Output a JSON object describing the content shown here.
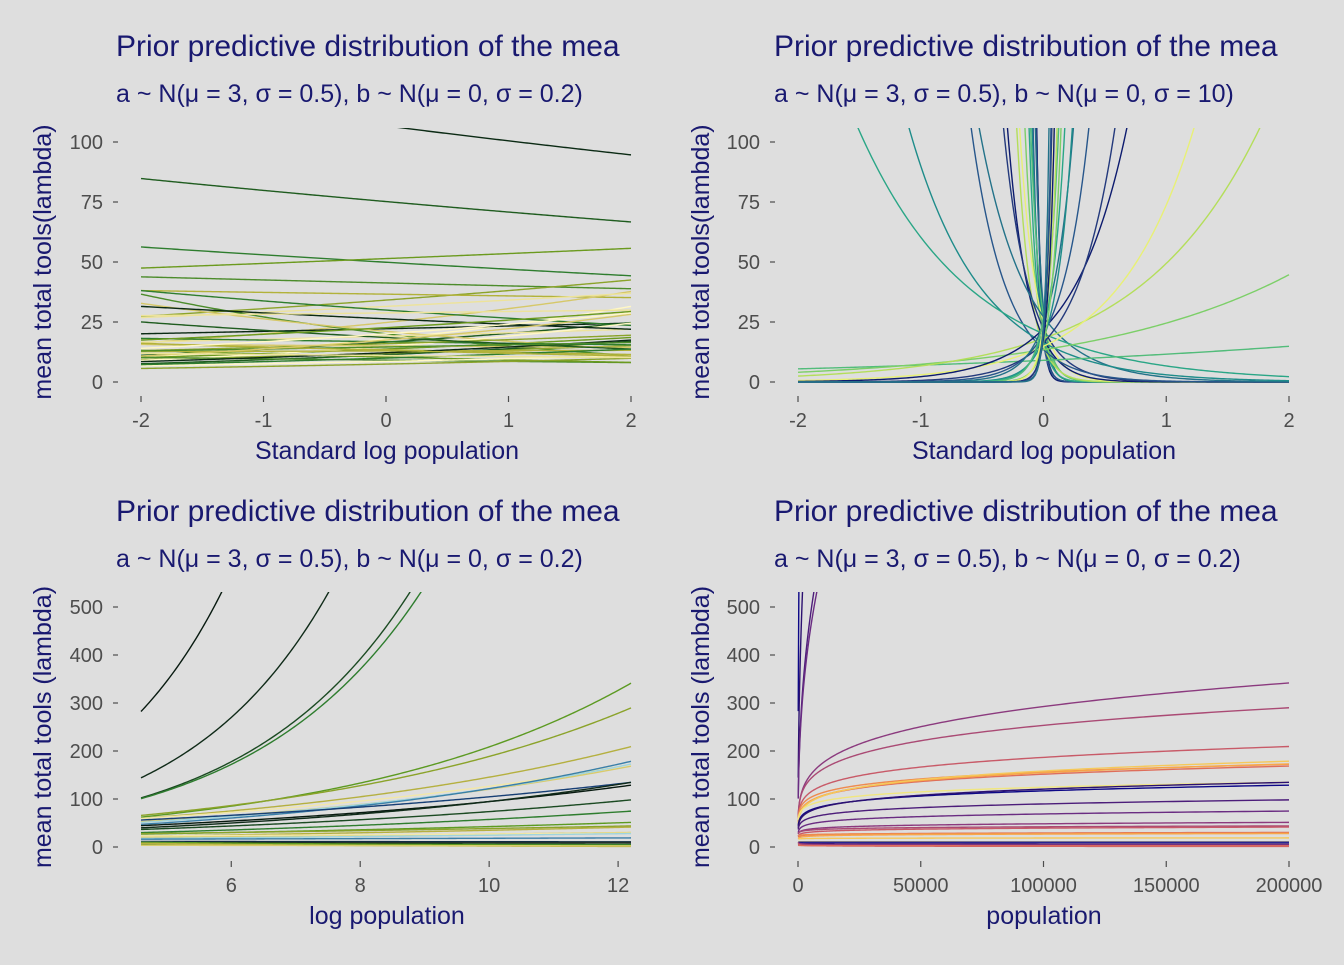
{
  "chart_data": [
    {
      "id": "tl",
      "type": "line",
      "title": "Prior predictive distribution of the mea",
      "subtitle": "a ~ N(μ = 3, σ = 0.5), b ~ N(μ = 0, σ = 0.2)",
      "xlabel": "Standard log population",
      "ylabel": "mean total tools(lambda)",
      "xlim": [
        -2,
        2
      ],
      "ylim": [
        0,
        100
      ],
      "xticks": [
        -2,
        -1,
        0,
        1,
        2
      ],
      "xtick_labels": [
        "-2",
        "-1",
        "0",
        "1",
        "2"
      ],
      "yticks": [
        0,
        25,
        50,
        75,
        100
      ],
      "ytick_labels": [
        "0",
        "25",
        "50",
        "75",
        "100"
      ],
      "grid": false,
      "legend": "none",
      "colors": [
        "#0B2A14",
        "#1F5C1F",
        "#2E7D2E",
        "#4C8C2B",
        "#6B9A1E",
        "#8BA32A",
        "#B2B23A",
        "#D6C869",
        "#EDE39A",
        "#FFF7C4"
      ],
      "model": "lambda = exp(a + b * x)",
      "series": [
        {
          "a": 4.67,
          "b": -0.06
        },
        {
          "a": 4.32,
          "b": -0.06
        },
        {
          "a": 3.91,
          "b": -0.06
        },
        {
          "a": 3.72,
          "b": -0.03
        },
        {
          "a": 3.94,
          "b": 0.04
        },
        {
          "a": 3.53,
          "b": 0.11
        },
        {
          "a": 3.6,
          "b": -0.02
        },
        {
          "a": 3.21,
          "b": 0.21
        },
        {
          "a": 3.45,
          "b": 0.08
        },
        {
          "a": 2.89,
          "b": 0.28
        },
        {
          "a": 3.1,
          "b": 0.05
        },
        {
          "a": 2.81,
          "b": 0.2
        },
        {
          "a": 3.4,
          "b": -0.12
        },
        {
          "a": 3.0,
          "b": -0.3
        },
        {
          "a": 2.62,
          "b": 0.15
        },
        {
          "a": 2.48,
          "b": 0.12
        },
        {
          "a": 2.6,
          "b": -0.08
        },
        {
          "a": 3.05,
          "b": -0.22
        },
        {
          "a": 2.95,
          "b": 0.07
        },
        {
          "a": 2.7,
          "b": 0.25
        },
        {
          "a": 3.27,
          "b": -0.09
        },
        {
          "a": 2.43,
          "b": 0.2
        },
        {
          "a": 2.82,
          "b": -0.04
        },
        {
          "a": 2.21,
          "b": -0.06
        },
        {
          "a": 2.34,
          "b": -0.12
        },
        {
          "a": 2.77,
          "b": 0.1
        },
        {
          "a": 2.56,
          "b": 0.01
        },
        {
          "a": 2.71,
          "b": -0.02
        },
        {
          "a": 3.36,
          "b": 0.02
        },
        {
          "a": 2.15,
          "b": 0.12
        },
        {
          "a": 2.5,
          "b": 0.18
        },
        {
          "a": 2.92,
          "b": -0.15
        },
        {
          "a": 2.3,
          "b": 0.16
        },
        {
          "a": 2.68,
          "b": 0.06
        },
        {
          "a": 3.12,
          "b": 0.13
        },
        {
          "a": 2.01,
          "b": 0.14
        },
        {
          "a": 2.58,
          "b": -0.1
        },
        {
          "a": 2.86,
          "b": 0.24
        },
        {
          "a": 2.4,
          "b": -0.04
        },
        {
          "a": 3.0,
          "b": 0.18
        }
      ]
    },
    {
      "id": "tr",
      "type": "line",
      "title": "Prior predictive distribution of the mea",
      "subtitle": "a ~ N(μ = 3, σ = 0.5), b ~ N(μ = 0, σ = 10)",
      "xlabel": "Standard log population",
      "ylabel": "mean total tools(lambda)",
      "xlim": [
        -2,
        2
      ],
      "ylim": [
        0,
        100
      ],
      "xticks": [
        -2,
        -1,
        0,
        1,
        2
      ],
      "xtick_labels": [
        "-2",
        "-1",
        "0",
        "1",
        "2"
      ],
      "yticks": [
        0,
        25,
        50,
        75,
        100
      ],
      "ytick_labels": [
        "0",
        "25",
        "50",
        "75",
        "100"
      ],
      "grid": false,
      "legend": "none",
      "colors": [
        "#0D1B6E",
        "#23397C",
        "#27568B",
        "#237289",
        "#1E8C8A",
        "#2AA686",
        "#52BC7A",
        "#7CCF68",
        "#B4DE5A",
        "#E8F076"
      ],
      "model": "lambda = exp(a + b * x)",
      "series": [
        {
          "a": 3.0,
          "b": -30
        },
        {
          "a": 3.2,
          "b": -26
        },
        {
          "a": 2.8,
          "b": -22
        },
        {
          "a": 3.4,
          "b": -19
        },
        {
          "a": 3.1,
          "b": -17
        },
        {
          "a": 2.9,
          "b": -15
        },
        {
          "a": 3.3,
          "b": -13
        },
        {
          "a": 3.0,
          "b": -11
        },
        {
          "a": 2.7,
          "b": -9
        },
        {
          "a": 3.2,
          "b": -7.5
        },
        {
          "a": 2.9,
          "b": -6
        },
        {
          "a": 3.1,
          "b": -4.8
        },
        {
          "a": 2.6,
          "b": -3.5
        },
        {
          "a": 3.3,
          "b": -2.6
        },
        {
          "a": 2.8,
          "b": -1.7
        },
        {
          "a": 3.0,
          "b": -1.1
        },
        {
          "a": 2.2,
          "b": 0.25
        },
        {
          "a": 2.6,
          "b": 0.6
        },
        {
          "a": 2.9,
          "b": 1.0
        },
        {
          "a": 2.7,
          "b": 1.6
        },
        {
          "a": 3.1,
          "b": 2.3
        },
        {
          "a": 2.8,
          "b": 3.2
        },
        {
          "a": 3.0,
          "b": 4.5
        },
        {
          "a": 3.2,
          "b": 6
        },
        {
          "a": 2.9,
          "b": 7.5
        },
        {
          "a": 3.1,
          "b": 9
        },
        {
          "a": 3.3,
          "b": 11
        },
        {
          "a": 2.8,
          "b": 13
        },
        {
          "a": 3.0,
          "b": 15
        },
        {
          "a": 3.2,
          "b": 17
        },
        {
          "a": 2.9,
          "b": 20
        },
        {
          "a": 3.1,
          "b": 23
        },
        {
          "a": 3.0,
          "b": 27
        },
        {
          "a": 3.2,
          "b": 32
        }
      ]
    },
    {
      "id": "bl",
      "type": "line",
      "title": "Prior predictive distribution of the mea",
      "subtitle": "a ~ N(μ = 3, σ = 0.5), b ~ N(μ = 0, σ = 0.2)",
      "xlabel": "log population",
      "ylabel": "mean total tools (lambda)",
      "xlim": [
        4.6,
        12.2
      ],
      "ylim": [
        0,
        500
      ],
      "xticks": [
        6,
        8,
        10,
        12
      ],
      "xtick_labels": [
        "6",
        "8",
        "10",
        "12"
      ],
      "yticks": [
        0,
        100,
        200,
        300,
        400,
        500
      ],
      "ytick_labels": [
        "0",
        "100",
        "200",
        "300",
        "400",
        "500"
      ],
      "grid": false,
      "legend": "none",
      "colors": [
        "#081A10",
        "#0F2A18",
        "#1B4A22",
        "#2E7D2E",
        "#5C9A22",
        "#8BA32A",
        "#B5B040",
        "#D9CB6C",
        "#F2E7A8",
        "#9FD4DE",
        "#3A7FA8",
        "#173F75"
      ],
      "model": "lambda = exp(a + b * x)",
      "series": [
        {
          "a": 3.32,
          "b": 0.505
        },
        {
          "a": 2.91,
          "b": 0.448
        },
        {
          "a": 2.81,
          "b": 0.395
        },
        {
          "a": 2.85,
          "b": 0.383
        },
        {
          "a": 3.1,
          "b": 0.224
        },
        {
          "a": 3.29,
          "b": 0.195
        },
        {
          "a": 3.33,
          "b": 0.165
        },
        {
          "a": 3.26,
          "b": 0.153
        },
        {
          "a": 3.44,
          "b": 0.14
        },
        {
          "a": 3.2,
          "b": 0.16
        },
        {
          "a": 3.05,
          "b": 0.175
        },
        {
          "a": 3.5,
          "b": 0.115
        },
        {
          "a": 3.15,
          "b": 0.14
        },
        {
          "a": 2.95,
          "b": 0.16
        },
        {
          "a": 3.0,
          "b": 0.13
        },
        {
          "a": 2.85,
          "b": 0.12
        },
        {
          "a": 2.9,
          "b": 0.085
        },
        {
          "a": 3.05,
          "b": 0.06
        },
        {
          "a": 2.75,
          "b": 0.08
        },
        {
          "a": 2.8,
          "b": 0.05
        },
        {
          "a": 3.0,
          "b": 0.03
        },
        {
          "a": 2.6,
          "b": 0.06
        },
        {
          "a": 2.7,
          "b": 0.02
        },
        {
          "a": 2.5,
          "b": -0.01
        },
        {
          "a": 2.3,
          "b": 0.0
        },
        {
          "a": 2.1,
          "b": -0.02
        },
        {
          "a": 1.8,
          "b": -0.03
        },
        {
          "a": 2.2,
          "b": -0.05
        },
        {
          "a": 3.0,
          "b": -0.15
        },
        {
          "a": 2.0,
          "b": -0.1
        },
        {
          "a": 3.2,
          "b": -0.25
        },
        {
          "a": 1.5,
          "b": -0.05
        }
      ]
    },
    {
      "id": "br",
      "type": "line",
      "title": "Prior predictive distribution of the mea",
      "subtitle": "a ~ N(μ = 3, σ = 0.5), b ~ N(μ = 0, σ = 0.2)",
      "xlabel": "population",
      "ylabel": "mean total tools (lambda)",
      "xlim": [
        0,
        200000
      ],
      "ylim": [
        0,
        500
      ],
      "xticks": [
        0,
        50000,
        100000,
        150000,
        200000
      ],
      "xtick_labels": [
        "0",
        "50000",
        "100000",
        "150000",
        "200000"
      ],
      "yticks": [
        0,
        100,
        200,
        300,
        400,
        500
      ],
      "ytick_labels": [
        "0",
        "100",
        "200",
        "300",
        "400",
        "500"
      ],
      "grid": false,
      "legend": "none",
      "colors": [
        "#0D0887",
        "#2C1170",
        "#4C1D7A",
        "#6A2C82",
        "#8B3A7E",
        "#AA4A74",
        "#C85A68",
        "#DE6E5B",
        "#EE8A4F",
        "#F8A74A",
        "#F5C95A",
        "#F0E680"
      ],
      "model": "lambda = exp(a + b * log(x))",
      "series": [
        {
          "a": 3.32,
          "b": 0.505
        },
        {
          "a": 2.91,
          "b": 0.448
        },
        {
          "a": 2.81,
          "b": 0.395
        },
        {
          "a": 2.85,
          "b": 0.383
        },
        {
          "a": 3.1,
          "b": 0.224
        },
        {
          "a": 3.29,
          "b": 0.195
        },
        {
          "a": 3.33,
          "b": 0.165
        },
        {
          "a": 3.26,
          "b": 0.153
        },
        {
          "a": 3.44,
          "b": 0.14
        },
        {
          "a": 3.2,
          "b": 0.16
        },
        {
          "a": 3.05,
          "b": 0.175
        },
        {
          "a": 3.5,
          "b": 0.115
        },
        {
          "a": 3.15,
          "b": 0.14
        },
        {
          "a": 2.95,
          "b": 0.16
        },
        {
          "a": 3.0,
          "b": 0.13
        },
        {
          "a": 2.85,
          "b": 0.12
        },
        {
          "a": 2.9,
          "b": 0.085
        },
        {
          "a": 3.05,
          "b": 0.06
        },
        {
          "a": 2.75,
          "b": 0.08
        },
        {
          "a": 2.8,
          "b": 0.05
        },
        {
          "a": 3.0,
          "b": 0.03
        },
        {
          "a": 2.6,
          "b": 0.06
        },
        {
          "a": 2.7,
          "b": 0.02
        },
        {
          "a": 2.5,
          "b": -0.01
        },
        {
          "a": 2.3,
          "b": 0.0
        },
        {
          "a": 2.1,
          "b": -0.02
        },
        {
          "a": 1.8,
          "b": -0.03
        },
        {
          "a": 2.2,
          "b": -0.05
        },
        {
          "a": 3.0,
          "b": -0.15
        },
        {
          "a": 2.0,
          "b": -0.1
        },
        {
          "a": 3.2,
          "b": -0.25
        },
        {
          "a": 1.5,
          "b": -0.05
        }
      ]
    }
  ]
}
